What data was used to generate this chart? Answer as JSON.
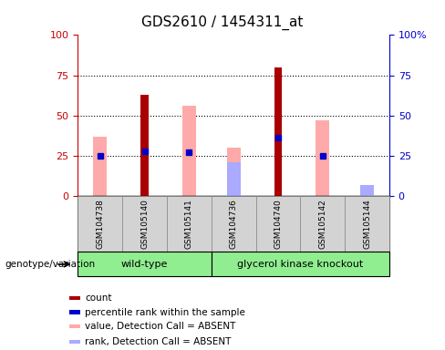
{
  "title": "GDS2610 / 1454311_at",
  "samples": [
    "GSM104738",
    "GSM105140",
    "GSM105141",
    "GSM104736",
    "GSM104740",
    "GSM105142",
    "GSM105144"
  ],
  "wt_count": 3,
  "gk_count": 4,
  "count": [
    null,
    63,
    null,
    null,
    80,
    null,
    null
  ],
  "percentile_rank": [
    25,
    28,
    27,
    null,
    36,
    25,
    null
  ],
  "value_absent": [
    37,
    null,
    56,
    30,
    null,
    47,
    null
  ],
  "rank_absent": [
    null,
    null,
    null,
    21,
    null,
    null,
    7
  ],
  "ylim": [
    0,
    100
  ],
  "left_axis_color": "#cc0000",
  "right_axis_color": "#0000cc",
  "count_color": "#aa0000",
  "percentile_color": "#0000cc",
  "value_absent_color": "#ffaaaa",
  "rank_absent_color": "#aaaaff",
  "bg_color": "#d3d3d3",
  "group_color": "#90ee90",
  "wt_label": "wild-type",
  "gk_label": "glycerol kinase knockout",
  "genotype_label": "genotype/variation",
  "legend_items": [
    {
      "color": "#aa0000",
      "label": "count"
    },
    {
      "color": "#0000cc",
      "label": "percentile rank within the sample"
    },
    {
      "color": "#ffaaaa",
      "label": "value, Detection Call = ABSENT"
    },
    {
      "color": "#aaaaff",
      "label": "rank, Detection Call = ABSENT"
    }
  ],
  "count_bar_width": 0.18,
  "absent_bar_width": 0.3
}
